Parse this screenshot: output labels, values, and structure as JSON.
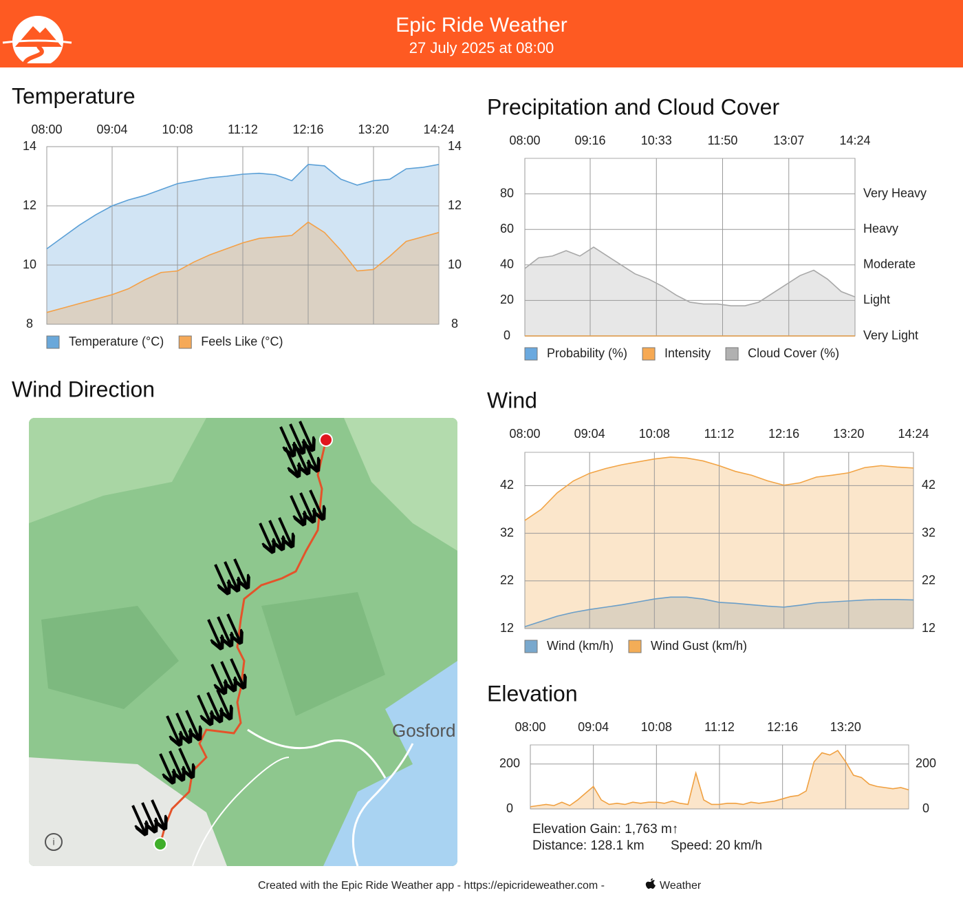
{
  "header": {
    "title": "Epic Ride Weather",
    "subtitle": "27 July 2025 at 08:00"
  },
  "map": {
    "title": "Wind Direction",
    "place_label": "Gosford"
  },
  "footer": {
    "credit": "Created with the Epic Ride Weather app - https://epicrideweather.com -",
    "source": "Weather"
  },
  "chart_data": [
    {
      "type": "area",
      "title": "Temperature",
      "x": [
        "08:00",
        "08:16",
        "08:32",
        "08:48",
        "09:04",
        "09:20",
        "09:36",
        "09:52",
        "10:08",
        "10:24",
        "10:40",
        "10:56",
        "11:12",
        "11:28",
        "11:44",
        "12:00",
        "12:16",
        "12:32",
        "12:48",
        "13:04",
        "13:20",
        "13:36",
        "13:52",
        "14:08",
        "14:24"
      ],
      "xlim": [
        "08:00",
        "14:24"
      ],
      "xticks": [
        "08:00",
        "09:04",
        "10:08",
        "11:12",
        "12:16",
        "13:20",
        "14:24"
      ],
      "ylim": [
        8,
        14
      ],
      "yticks": [
        8,
        10,
        12,
        14
      ],
      "y2lim": [
        8,
        14
      ],
      "y2ticks": [
        8,
        10,
        12,
        14
      ],
      "grid": true,
      "series": [
        {
          "name": "Temperature (°C)",
          "color": "#5a9fd6",
          "values": [
            10.55,
            10.95,
            11.35,
            11.7,
            12.0,
            12.2,
            12.35,
            12.55,
            12.75,
            12.85,
            12.95,
            13.0,
            13.07,
            13.1,
            13.05,
            12.85,
            13.4,
            13.35,
            12.9,
            12.7,
            12.85,
            12.9,
            13.25,
            13.3,
            13.4
          ]
        },
        {
          "name": "Feels Like (°C)",
          "color": "#f4a046",
          "values": [
            8.4,
            8.55,
            8.7,
            8.85,
            9.0,
            9.2,
            9.5,
            9.75,
            9.8,
            10.1,
            10.35,
            10.55,
            10.75,
            10.9,
            10.95,
            11.0,
            11.45,
            11.1,
            10.5,
            9.8,
            9.85,
            10.3,
            10.8,
            10.95,
            11.1
          ]
        }
      ]
    },
    {
      "type": "area",
      "title": "Precipitation and Cloud Cover",
      "x": [
        "08:00",
        "08:16",
        "08:32",
        "08:48",
        "09:04",
        "09:20",
        "09:36",
        "09:52",
        "10:08",
        "10:24",
        "10:40",
        "10:56",
        "11:12",
        "11:28",
        "11:44",
        "12:00",
        "12:16",
        "12:32",
        "12:48",
        "13:04",
        "13:20",
        "13:36",
        "13:52",
        "14:08",
        "14:24"
      ],
      "xlim": [
        "08:00",
        "14:24"
      ],
      "xticks": [
        "08:00",
        "09:16",
        "10:33",
        "11:50",
        "13:07",
        "14:24"
      ],
      "ylim": [
        0,
        100
      ],
      "yticks": [
        0,
        20,
        40,
        60,
        80
      ],
      "y2lim": [
        0,
        100
      ],
      "y2ticks": [
        {
          "value": 0,
          "label": "Very Light"
        },
        {
          "value": 20,
          "label": "Light"
        },
        {
          "value": 40,
          "label": "Moderate"
        },
        {
          "value": 60,
          "label": "Heavy"
        },
        {
          "value": 80,
          "label": "Very Heavy"
        }
      ],
      "grid": true,
      "series": [
        {
          "name": "Probability (%)",
          "color": "#5aa0dc",
          "values": [
            0,
            0,
            0,
            0,
            0,
            0,
            0,
            0,
            0,
            0,
            0,
            0,
            0,
            0,
            0,
            0,
            0,
            0,
            0,
            0,
            0,
            0,
            0,
            0,
            0
          ]
        },
        {
          "name": "Intensity",
          "color": "#f5a040",
          "values": [
            0,
            0,
            0,
            0,
            0,
            0,
            0,
            0,
            0,
            0,
            0,
            0,
            0,
            0,
            0,
            0,
            0,
            0,
            0,
            0,
            0,
            0,
            0,
            0,
            0
          ]
        },
        {
          "name": "Cloud Cover (%)",
          "color": "#a8a8a8",
          "values": [
            38,
            44,
            45,
            48,
            45,
            50,
            45,
            40,
            35,
            32,
            28,
            23,
            19,
            18,
            18,
            17,
            17,
            19,
            24,
            29,
            34,
            37,
            32,
            25,
            22
          ]
        }
      ]
    },
    {
      "type": "area",
      "title": "Wind",
      "x": [
        "08:00",
        "08:16",
        "08:32",
        "08:48",
        "09:04",
        "09:20",
        "09:36",
        "09:52",
        "10:08",
        "10:24",
        "10:40",
        "10:56",
        "11:12",
        "11:28",
        "11:44",
        "12:00",
        "12:16",
        "12:32",
        "12:48",
        "13:04",
        "13:20",
        "13:36",
        "13:52",
        "14:08",
        "14:24"
      ],
      "xlim": [
        "08:00",
        "14:24"
      ],
      "xticks": [
        "08:00",
        "09:04",
        "10:08",
        "11:12",
        "12:16",
        "13:20",
        "14:24"
      ],
      "ylim": [
        12,
        49
      ],
      "yticks": [
        12,
        22,
        32,
        42
      ],
      "y2lim": [
        12,
        49
      ],
      "y2ticks": [
        12,
        22,
        32,
        42
      ],
      "grid": true,
      "series": [
        {
          "name": "Wind (km/h)",
          "color": "#6a9ec8",
          "values": [
            12.4,
            13.5,
            14.6,
            15.4,
            16,
            16.5,
            17,
            17.6,
            18.2,
            18.6,
            18.6,
            18.2,
            17.5,
            17.3,
            17,
            16.7,
            16.5,
            16.9,
            17.4,
            17.6,
            17.8,
            18,
            18.1,
            18.1,
            18
          ]
        },
        {
          "name": "Wind Gust (km/h)",
          "color": "#f2a445",
          "values": [
            34.7,
            37,
            40.5,
            43,
            44.6,
            45.6,
            46.4,
            47,
            47.6,
            48,
            47.8,
            47.2,
            46.2,
            45,
            44.2,
            43,
            42.1,
            42.6,
            43.8,
            44.2,
            44.7,
            45.8,
            46.2,
            45.9,
            45.7
          ]
        }
      ]
    },
    {
      "type": "area",
      "title": "Elevation",
      "x": [
        "08:00",
        "08:08",
        "08:16",
        "08:24",
        "08:32",
        "08:40",
        "08:48",
        "08:56",
        "09:04",
        "09:12",
        "09:20",
        "09:28",
        "09:36",
        "09:44",
        "09:52",
        "10:00",
        "10:08",
        "10:16",
        "10:24",
        "10:32",
        "10:40",
        "10:48",
        "10:56",
        "11:04",
        "11:12",
        "11:20",
        "11:28",
        "11:36",
        "11:44",
        "11:52",
        "12:00",
        "12:08",
        "12:16",
        "12:24",
        "12:32",
        "12:40",
        "12:48",
        "12:56",
        "13:04",
        "13:12",
        "13:20",
        "13:28",
        "13:36",
        "13:44",
        "13:52",
        "14:00",
        "14:08",
        "14:16",
        "14:24"
      ],
      "xlim": [
        "08:00",
        "14:24"
      ],
      "xticks": [
        "08:00",
        "09:04",
        "10:08",
        "11:12",
        "12:16",
        "13:20"
      ],
      "ylim": [
        0,
        285
      ],
      "yticks": [
        0,
        200
      ],
      "y2lim": [
        0,
        285
      ],
      "y2ticks": [
        0,
        200
      ],
      "grid": true,
      "color": "#f0a040",
      "values": [
        10,
        15,
        20,
        15,
        30,
        15,
        40,
        70,
        100,
        40,
        20,
        25,
        20,
        30,
        25,
        30,
        30,
        25,
        35,
        25,
        20,
        160,
        40,
        20,
        20,
        25,
        25,
        20,
        30,
        25,
        30,
        35,
        45,
        55,
        60,
        80,
        210,
        250,
        240,
        260,
        210,
        150,
        140,
        110,
        100,
        95,
        90,
        95,
        85
      ],
      "annotations": [
        "Elevation Gain: 1,763 m↑",
        "Distance: 128.1 km",
        "Speed: 20 km/h"
      ]
    }
  ]
}
